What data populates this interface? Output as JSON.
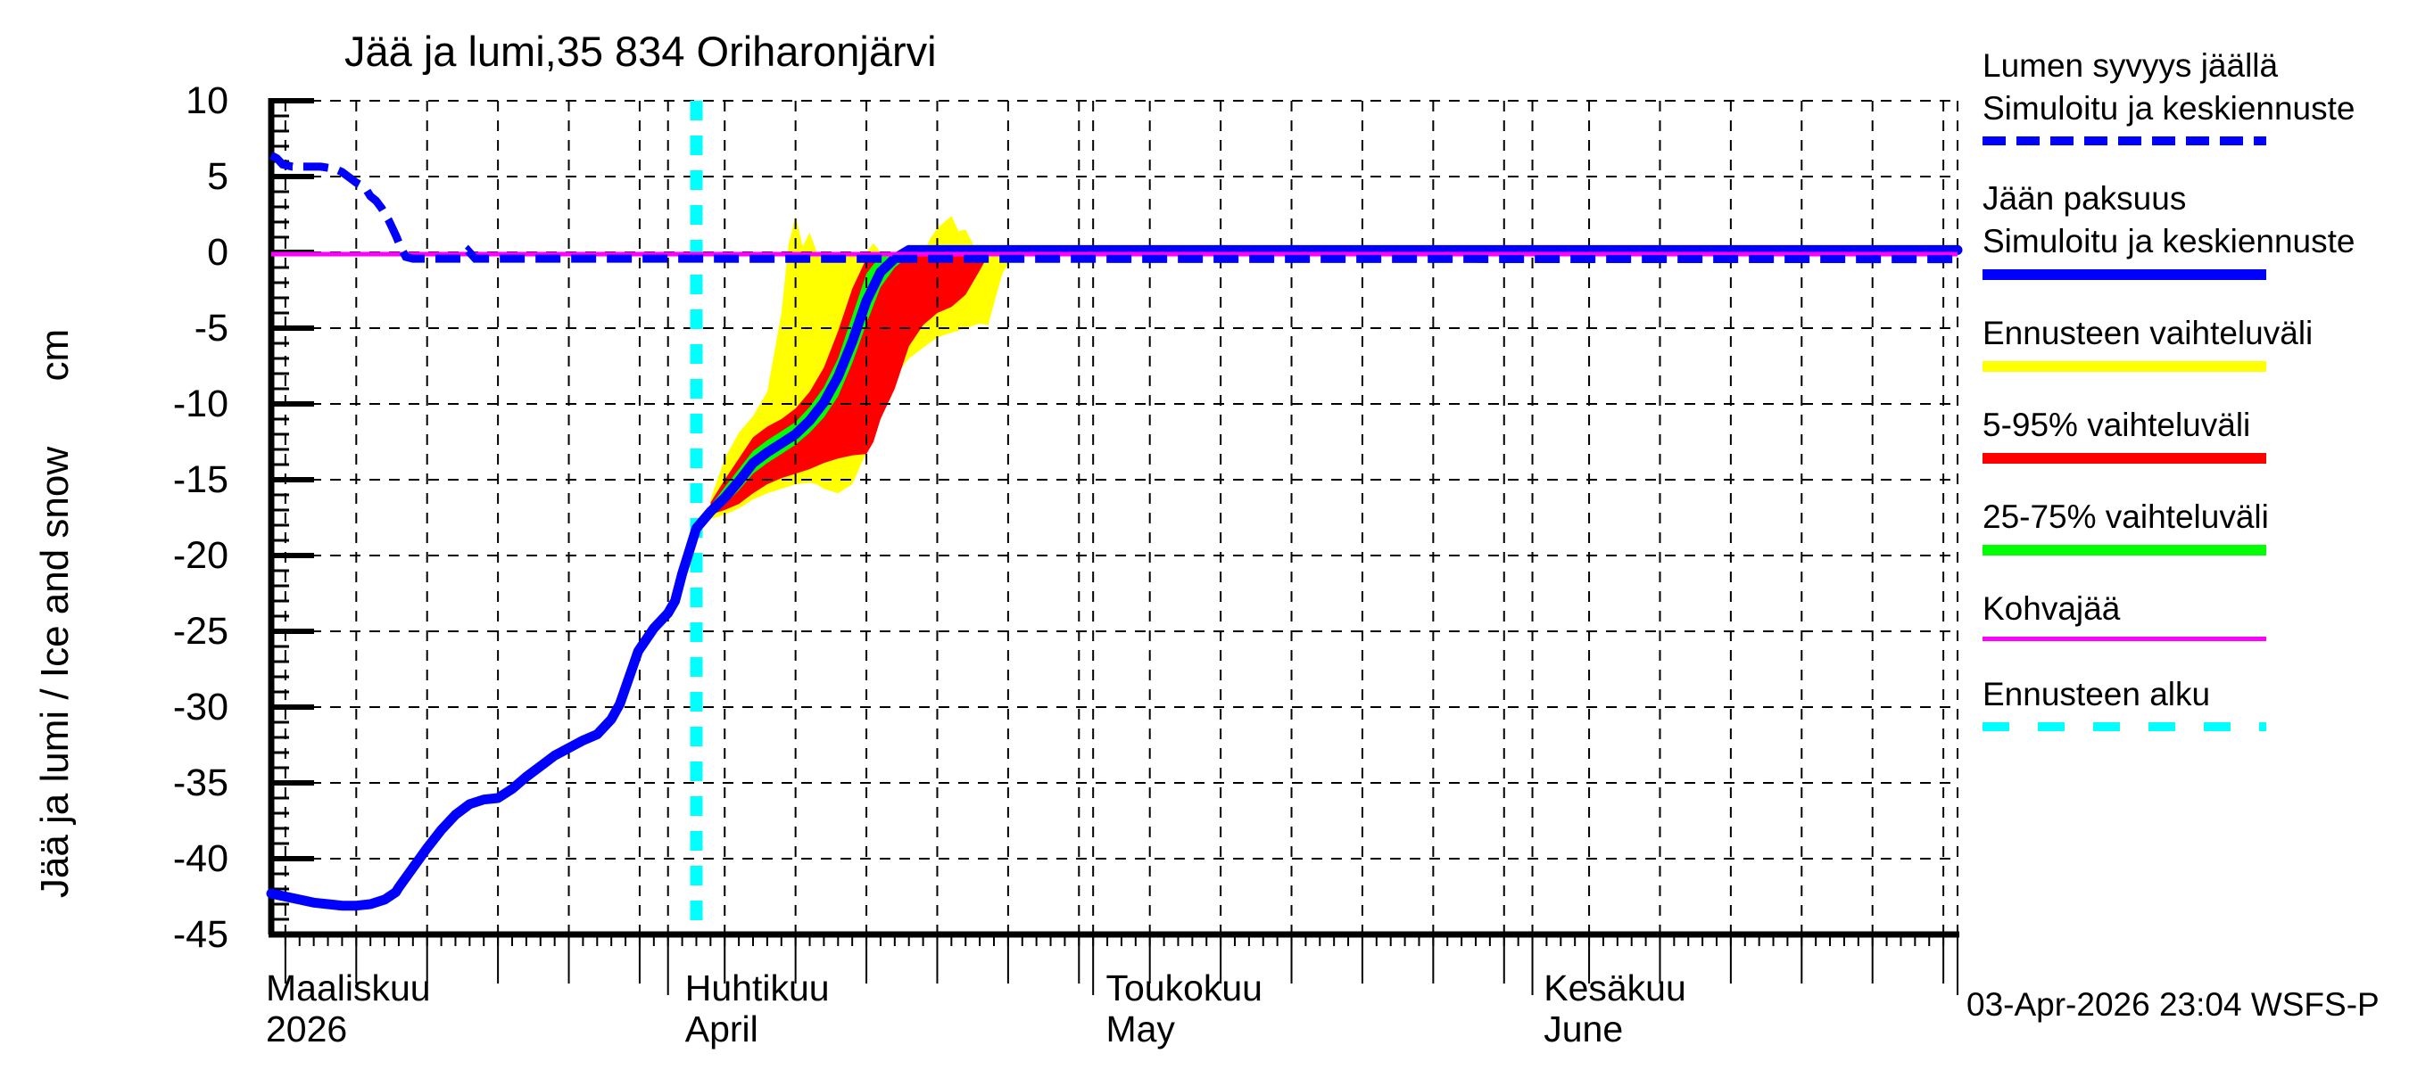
{
  "title": "Jää ja lumi,35 834 Oriharonjärvi",
  "y_axis": {
    "label": "Jää ja lumi / Ice and snow      cm",
    "ticks": [
      10,
      5,
      0,
      -5,
      -10,
      -15,
      -20,
      -25,
      -30,
      -35,
      -40,
      -45
    ]
  },
  "x_axis": {
    "months": [
      {
        "line1": "Maaliskuu",
        "line2": "2026",
        "day": 0
      },
      {
        "line1": "Huhtikuu",
        "line2": "April",
        "day": 32.2
      },
      {
        "line1": "Toukokuu",
        "line2": "May",
        "day": 61.9
      },
      {
        "line1": "Kesäkuu",
        "line2": "June",
        "day": 92.8
      }
    ]
  },
  "legend": {
    "entries": [
      {
        "lines": [
          "Lumen syvyys jäällä",
          "Simuloitu ja keskiennuste"
        ],
        "color": "#0000ff",
        "style": "dashed",
        "thickness": 10
      },
      {
        "lines": [
          "Jään paksuus",
          "Simuloitu ja keskiennuste"
        ],
        "color": "#0000ff",
        "style": "solid",
        "thickness": 12
      },
      {
        "lines": [
          "Ennusteen vaihteluväli"
        ],
        "color": "#ffff00",
        "style": "solid",
        "thickness": 12
      },
      {
        "lines": [
          "5-95% vaihteluväli"
        ],
        "color": "#ff0000",
        "style": "solid",
        "thickness": 12
      },
      {
        "lines": [
          "25-75% vaihteluväli"
        ],
        "color": "#00ff00",
        "style": "solid",
        "thickness": 12
      },
      {
        "lines": [
          "Kohvajää"
        ],
        "color": "#ff00ff",
        "style": "solid",
        "thickness": 5
      },
      {
        "lines": [
          "Ennusteen alku"
        ],
        "color": "#00ffff",
        "style": "dashed-sq",
        "thickness": 10
      }
    ]
  },
  "footer": {
    "timestamp": "03-Apr-2026 23:04 WSFS-P"
  },
  "chart_data": {
    "type": "line",
    "title": "Jää ja lumi,35 834 Oriharonjärvi",
    "ylabel": "Jää ja lumi / Ice and snow (cm)",
    "x_unit": "days since 2026-03-01",
    "x_range": [
      3,
      122
    ],
    "ylim": [
      -45,
      10
    ],
    "grid": {
      "h_values": [
        10,
        5,
        0,
        -5,
        -10,
        -15,
        -20,
        -25,
        -30,
        -35,
        -40
      ],
      "v_days": [
        4,
        9,
        14,
        19,
        24,
        29,
        31,
        35,
        40,
        45,
        50,
        55,
        60,
        61,
        65,
        70,
        75,
        80,
        85,
        90,
        92,
        96,
        101,
        106,
        111,
        116,
        121,
        122
      ],
      "five_day_tick_days": [
        4,
        9,
        14,
        19,
        24,
        29,
        35,
        40,
        45,
        50,
        55,
        60,
        65,
        70,
        75,
        80,
        85,
        90,
        96,
        101,
        106,
        111,
        116,
        121
      ],
      "month_tick_days": [
        31,
        61,
        92,
        122
      ]
    },
    "forecast_start_day": 33,
    "colors": {
      "snow": "#0000ff",
      "ice": "#0000ff",
      "kohvajaa": "#ff00ff",
      "forecast_start": "#00ffff",
      "range_full": "#ffff00",
      "range_5_95": "#ff0000",
      "range_25_75": "#00ff00"
    },
    "series": {
      "snow_depth_on_ice": {
        "name": "Lumen syvyys jäällä - Simuloitu ja keskiennuste",
        "points": [
          [
            3,
            6.4
          ],
          [
            3.4,
            6.2
          ],
          [
            3.8,
            5.8
          ],
          [
            4.5,
            5.65
          ],
          [
            6.5,
            5.65
          ],
          [
            7.5,
            5.5
          ],
          [
            8,
            5.3
          ],
          [
            9,
            4.6
          ],
          [
            9.6,
            4.3
          ],
          [
            10,
            3.7
          ],
          [
            10.4,
            3.4
          ],
          [
            10.8,
            2.9
          ],
          [
            11.3,
            2.1
          ],
          [
            11.8,
            1.1
          ],
          [
            12.2,
            0.2
          ],
          [
            12.5,
            -0.3
          ],
          [
            13,
            -0.42
          ],
          [
            16.4,
            -0.42
          ],
          [
            16.9,
            0.1
          ],
          [
            17.4,
            -0.42
          ],
          [
            122,
            -0.45
          ]
        ]
      },
      "ice_thickness_simulated": {
        "name": "Jään paksuus - Simuloitu",
        "points": [
          [
            3,
            -42.3
          ],
          [
            4,
            -42.5
          ],
          [
            5,
            -42.7
          ],
          [
            6,
            -42.9
          ],
          [
            7,
            -43.0
          ],
          [
            8,
            -43.1
          ],
          [
            9,
            -43.1
          ],
          [
            10,
            -43.0
          ],
          [
            11,
            -42.7
          ],
          [
            11.8,
            -42.2
          ],
          [
            12,
            -41.9
          ],
          [
            13,
            -40.6
          ],
          [
            14,
            -39.3
          ],
          [
            15,
            -38.1
          ],
          [
            16,
            -37.1
          ],
          [
            17,
            -36.4
          ],
          [
            18,
            -36.1
          ],
          [
            19,
            -36.0
          ],
          [
            20,
            -35.4
          ],
          [
            21,
            -34.6
          ],
          [
            22,
            -33.9
          ],
          [
            23,
            -33.2
          ],
          [
            24,
            -32.7
          ],
          [
            25,
            -32.2
          ],
          [
            26,
            -31.8
          ],
          [
            27,
            -30.8
          ],
          [
            27.6,
            -29.8
          ],
          [
            28.9,
            -26.3
          ],
          [
            30,
            -24.8
          ],
          [
            31,
            -23.8
          ],
          [
            31.5,
            -23.0
          ],
          [
            32,
            -21.2
          ],
          [
            33,
            -18.2
          ]
        ]
      },
      "ice_thickness_forecast_median": {
        "name": "Jään paksuus - keskiennuste",
        "points": [
          [
            33,
            -18.2
          ],
          [
            34,
            -17.1
          ],
          [
            35,
            -16.2
          ],
          [
            36,
            -15.1
          ],
          [
            37,
            -13.9
          ],
          [
            38,
            -13.2
          ],
          [
            39,
            -12.6
          ],
          [
            40,
            -12.0
          ],
          [
            41,
            -11.1
          ],
          [
            42,
            -9.9
          ],
          [
            43,
            -8.2
          ],
          [
            44,
            -5.9
          ],
          [
            45,
            -3.2
          ],
          [
            46,
            -1.3
          ],
          [
            47,
            -0.4
          ],
          [
            48,
            0.15
          ],
          [
            122,
            0.15
          ]
        ]
      },
      "kohvajaa": {
        "name": "Kohvajää",
        "points": [
          [
            3,
            -0.12
          ],
          [
            122,
            -0.12
          ]
        ]
      }
    },
    "bands": {
      "range_full": {
        "name": "Ennusteen vaihteluväli",
        "upper": [
          [
            34,
            -16.3
          ],
          [
            35,
            -13.6
          ],
          [
            36,
            -11.9
          ],
          [
            37,
            -10.8
          ],
          [
            38,
            -9.2
          ],
          [
            39,
            -4.0
          ],
          [
            39.5,
            0.5
          ],
          [
            40,
            2.4
          ],
          [
            40.5,
            0.4
          ],
          [
            41,
            1.3
          ],
          [
            41.5,
            0
          ],
          [
            44,
            0
          ],
          [
            45,
            0
          ],
          [
            45.5,
            0.6
          ],
          [
            46,
            0
          ],
          [
            49,
            0
          ],
          [
            49.5,
            0.9
          ],
          [
            50,
            1.6
          ],
          [
            51,
            2.4
          ],
          [
            51.5,
            1.4
          ],
          [
            52,
            1.5
          ],
          [
            52.5,
            0.6
          ],
          [
            53,
            0
          ],
          [
            55.5,
            0
          ]
        ],
        "lower": [
          [
            34,
            -17.6
          ],
          [
            35,
            -17.3
          ],
          [
            36,
            -16.9
          ],
          [
            37,
            -16.3
          ],
          [
            38,
            -15.9
          ],
          [
            39,
            -15.6
          ],
          [
            40,
            -15.3
          ],
          [
            41,
            -15.2
          ],
          [
            41.5,
            -15.3
          ],
          [
            42,
            -15.6
          ],
          [
            43,
            -15.9
          ],
          [
            44,
            -15.3
          ],
          [
            45,
            -13.2
          ],
          [
            45.5,
            -12.1
          ],
          [
            46,
            -10.2
          ],
          [
            47,
            -8.2
          ],
          [
            48,
            -7.0
          ],
          [
            49,
            -6.3
          ],
          [
            50,
            -5.6
          ],
          [
            51,
            -5.3
          ],
          [
            52,
            -5.0
          ],
          [
            53,
            -4.7
          ],
          [
            53.6,
            -4.8
          ],
          [
            54,
            -3.4
          ],
          [
            54.6,
            -1.4
          ],
          [
            55.5,
            0
          ]
        ]
      },
      "range_5_95": {
        "name": "5-95% vaihteluväli",
        "upper": [
          [
            34,
            -16.5
          ],
          [
            35,
            -15.0
          ],
          [
            36,
            -13.6
          ],
          [
            37,
            -12.2
          ],
          [
            38,
            -11.5
          ],
          [
            39,
            -11.0
          ],
          [
            40,
            -10.3
          ],
          [
            41,
            -9.2
          ],
          [
            42,
            -7.6
          ],
          [
            43,
            -5.2
          ],
          [
            44,
            -2.4
          ],
          [
            45,
            -0.4
          ],
          [
            45.4,
            0
          ],
          [
            53.7,
            0
          ]
        ],
        "lower": [
          [
            34,
            -17.3
          ],
          [
            35,
            -17.0
          ],
          [
            36,
            -16.6
          ],
          [
            37,
            -15.9
          ],
          [
            38,
            -15.3
          ],
          [
            39,
            -14.9
          ],
          [
            40,
            -14.6
          ],
          [
            41,
            -14.3
          ],
          [
            42,
            -13.9
          ],
          [
            43,
            -13.6
          ],
          [
            44,
            -13.4
          ],
          [
            45,
            -13.3
          ],
          [
            45.5,
            -12.5
          ],
          [
            46,
            -11.0
          ],
          [
            47,
            -9.0
          ],
          [
            48,
            -6.2
          ],
          [
            49,
            -4.8
          ],
          [
            50,
            -4.0
          ],
          [
            51,
            -3.6
          ],
          [
            52,
            -2.8
          ],
          [
            53,
            -1.2
          ],
          [
            53.7,
            0
          ]
        ]
      },
      "range_25_75": {
        "name": "25-75% vaihteluväli",
        "upper": [
          [
            34,
            -16.7
          ],
          [
            35,
            -15.5
          ],
          [
            36,
            -14.3
          ],
          [
            37,
            -13.1
          ],
          [
            38,
            -12.4
          ],
          [
            39,
            -11.8
          ],
          [
            40,
            -11.2
          ],
          [
            41,
            -10.2
          ],
          [
            42,
            -8.9
          ],
          [
            43,
            -7.0
          ],
          [
            44,
            -4.2
          ],
          [
            45,
            -1.4
          ],
          [
            46,
            -0.2
          ],
          [
            46.5,
            0
          ],
          [
            48.5,
            0
          ]
        ],
        "lower": [
          [
            34,
            -17.1
          ],
          [
            35,
            -16.6
          ],
          [
            36,
            -15.7
          ],
          [
            37,
            -14.6
          ],
          [
            38,
            -13.9
          ],
          [
            39,
            -13.3
          ],
          [
            40,
            -12.7
          ],
          [
            41,
            -11.9
          ],
          [
            42,
            -10.9
          ],
          [
            43,
            -9.5
          ],
          [
            44,
            -7.3
          ],
          [
            45,
            -4.7
          ],
          [
            46,
            -2.3
          ],
          [
            47,
            -1.0
          ],
          [
            48,
            -0.25
          ],
          [
            48.5,
            0
          ]
        ]
      }
    }
  }
}
